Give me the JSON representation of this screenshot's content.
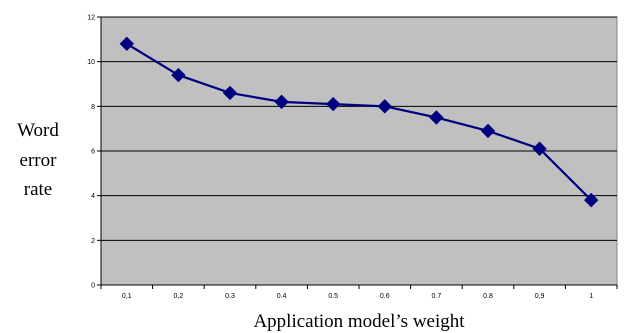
{
  "colors": {
    "plot_background": "#c0c0c0",
    "series": "#000080",
    "gridline": "#000000"
  },
  "chart_data": {
    "type": "line",
    "title": "",
    "xlabel": "Application model’s weight",
    "ylabel": [
      "Word",
      "error",
      "rate"
    ],
    "ylim": [
      0,
      12
    ],
    "yticks": [
      "0",
      "2",
      "4",
      "6",
      "8",
      "10",
      "12"
    ],
    "grid": "horizontal",
    "marker": "diamond",
    "categories": [
      "0,1",
      "0,2",
      "0.3",
      "0.4",
      "0.5",
      "0.6",
      "0.7",
      "0.8",
      "0,9",
      "1"
    ],
    "series": [
      {
        "values": [
          10.8,
          9.4,
          8.6,
          8.2,
          8.1,
          8.0,
          7.5,
          6.9,
          6.1,
          3.8
        ]
      }
    ]
  }
}
